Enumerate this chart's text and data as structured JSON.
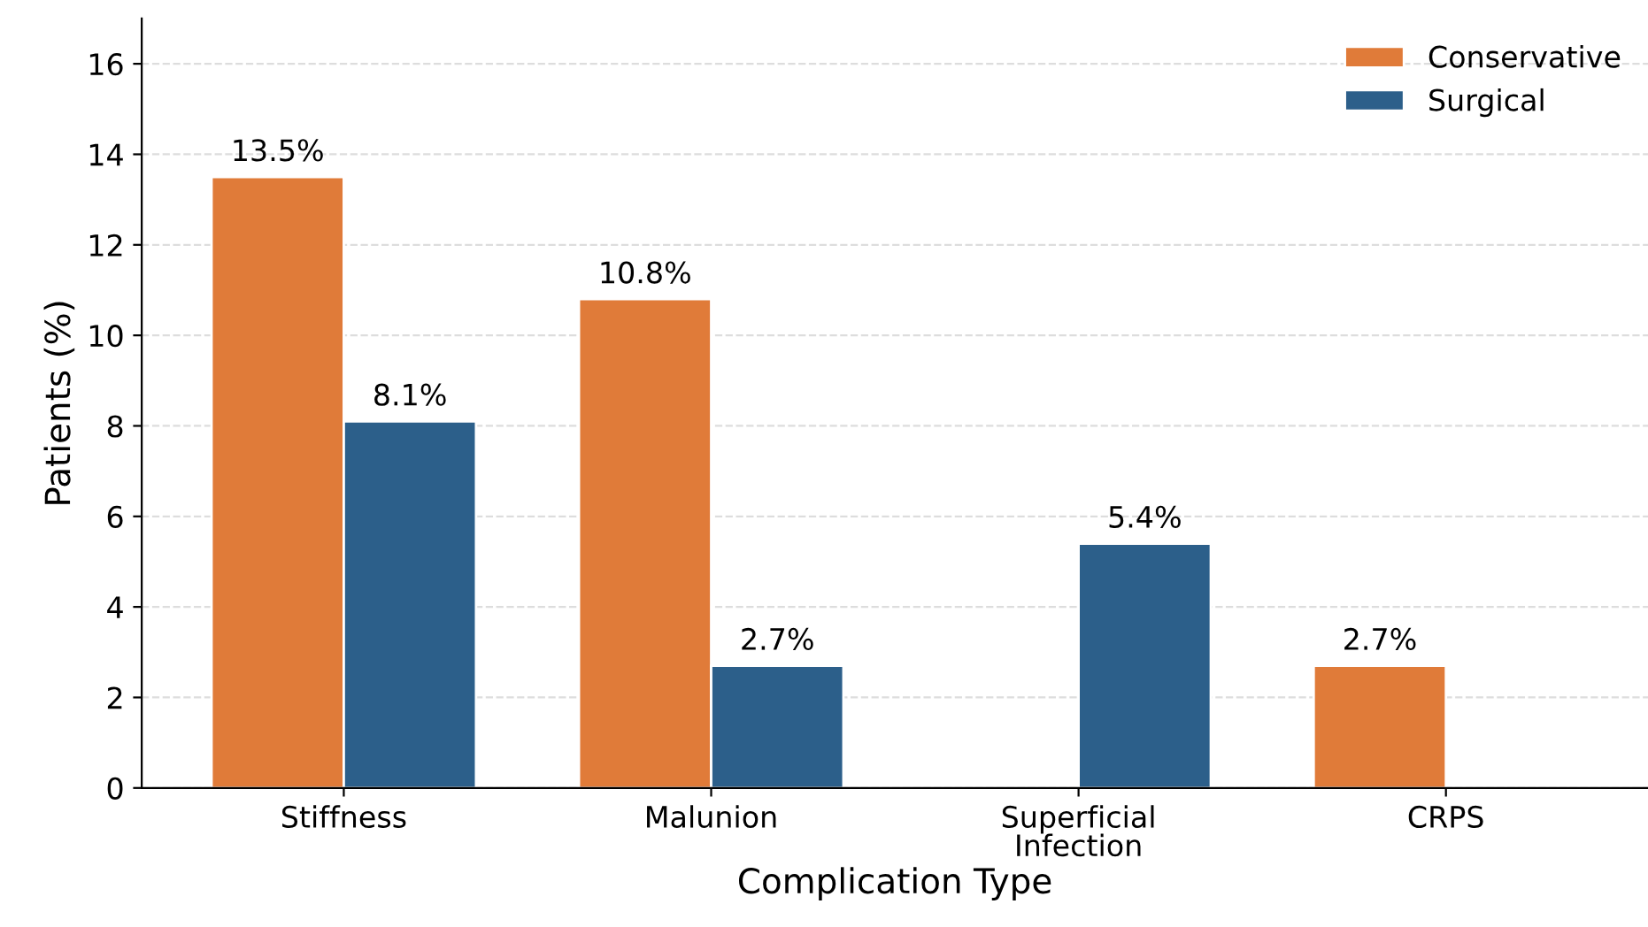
{
  "chart_data": {
    "type": "bar",
    "xlabel": "Complication Type",
    "ylabel": "Patients (%)",
    "categories": [
      "Stiffness",
      "Malunion",
      "Superficial\nInfection",
      "CRPS"
    ],
    "series": [
      {
        "name": "Conservative",
        "color": "#e07b39",
        "values": [
          13.5,
          10.8,
          null,
          2.7
        ],
        "value_labels": [
          "13.5%",
          "10.8%",
          null,
          "2.7%"
        ]
      },
      {
        "name": "Surgical",
        "color": "#2c5f8a",
        "values": [
          8.1,
          2.7,
          5.4,
          null
        ],
        "value_labels": [
          "8.1%",
          "2.7%",
          "5.4%",
          null
        ]
      }
    ],
    "ylim": [
      0,
      17
    ],
    "yticks": [
      0,
      2,
      4,
      6,
      8,
      10,
      12,
      14,
      16
    ],
    "grid": "y",
    "legend": "top right"
  }
}
